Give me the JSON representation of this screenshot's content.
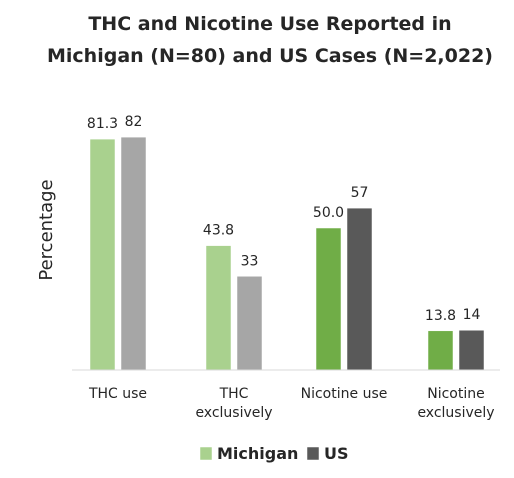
{
  "chart_data": {
    "type": "bar",
    "title": [
      "THC and Nicotine Use Reported in",
      "Michigan (N=80) and US Cases (N=2,022)"
    ],
    "ylabel": "Percentage",
    "xlabel": "",
    "ylim": [
      0,
      100
    ],
    "grid": false,
    "legend_position": "bottom",
    "categories": [
      [
        "THC use"
      ],
      [
        "THC",
        "exclusively"
      ],
      [
        "Nicotine use"
      ],
      [
        "Nicotine",
        "exclusively"
      ]
    ],
    "series": [
      {
        "name": "Michigan",
        "values": [
          81.3,
          43.8,
          50.0,
          13.8
        ],
        "labels": [
          "81.3",
          "43.8",
          "50.0",
          "13.8"
        ],
        "colors": [
          "#a9d18e",
          "#a9d18e",
          "#70ad47",
          "#70ad47"
        ],
        "legend_color": "#a9d18e"
      },
      {
        "name": "US",
        "values": [
          82,
          33,
          57,
          14
        ],
        "labels": [
          "82",
          "33",
          "57",
          "14"
        ],
        "colors": [
          "#a6a6a6",
          "#a6a6a6",
          "#595959",
          "#595959"
        ],
        "legend_color": "#595959"
      }
    ]
  }
}
